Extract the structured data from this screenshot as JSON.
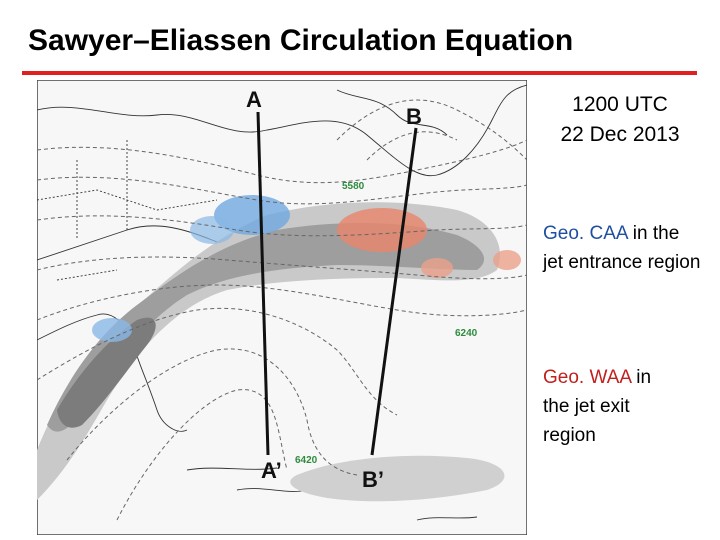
{
  "header": {
    "title": "Sawyer–Eliassen Circulation Equation"
  },
  "map": {
    "labels": {
      "a": "A",
      "b": "B",
      "a_prime": "A’",
      "b_prime": "B’"
    },
    "contours": [
      "5580",
      "6240",
      "6420"
    ]
  },
  "sidebar": {
    "time": "1200 UTC",
    "date": "22 Dec 2013",
    "notes": [
      {
        "highlight": "Geo. CAA",
        "text": "in the jet entrance region"
      },
      {
        "highlight": "Geo. WAA",
        "text": "in the jet exit region"
      }
    ]
  }
}
